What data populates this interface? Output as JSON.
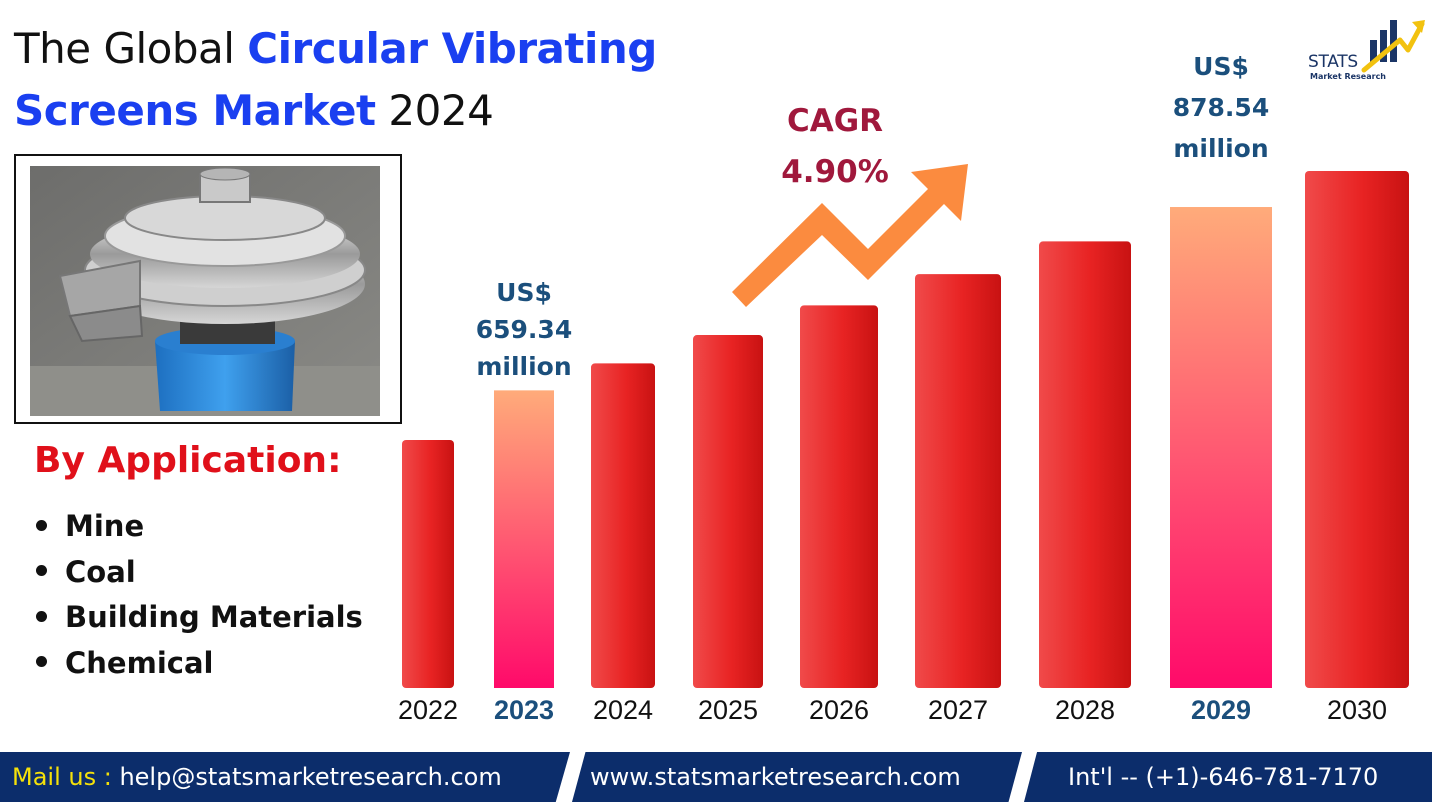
{
  "title": {
    "part1": "The Global ",
    "highlight1": "Circular Vibrating",
    "highlight2": "Screens Market",
    "part2": " 2024"
  },
  "photo": {
    "icon": "vibrating-screen-machine-photo"
  },
  "applications": {
    "heading": "By Application:",
    "items": [
      "Mine",
      "Coal",
      "Building Materials",
      "Chemical"
    ]
  },
  "annotations": {
    "value_2023": [
      "US$",
      "659.34",
      "million"
    ],
    "value_2029": [
      "US$",
      "878.54",
      "million"
    ],
    "cagr_title": "CAGR",
    "cagr_value": "4.90%"
  },
  "logo": {
    "name": "STATS",
    "subtitle": "Market Research",
    "icon": "bar-chart-arrow-icon"
  },
  "footer": {
    "mail_label": "Mail us :",
    "email": " help@statsmarketresearch.com",
    "website": "www.statsmarketresearch.com",
    "phone": "Int'l -- (+1)-646-781-7170"
  },
  "colors": {
    "title_blue": "#1a3ff0",
    "bar_red": "#e01a1a",
    "bar_highlight_top": "#ffab7a",
    "bar_highlight_bottom": "#ff0a6a",
    "arrow_orange": "#fb8b3f",
    "footer_navy": "#0c2d6b"
  },
  "chart_data": {
    "type": "bar",
    "title": "The Global Circular Vibrating Screens Market 2024",
    "xlabel": "",
    "ylabel": "",
    "categories": [
      "2022",
      "2023",
      "2024",
      "2025",
      "2026",
      "2027",
      "2028",
      "2029",
      "2030"
    ],
    "values": [
      600,
      659.34,
      691.6,
      725.5,
      761.0,
      798.3,
      837.4,
      878.54,
      921.6
    ],
    "highlighted": [
      "2023",
      "2029"
    ],
    "ylim": [
      0,
      950
    ],
    "grid": false,
    "legend": "none",
    "annotations": [
      {
        "category": "2023",
        "text": "US$ 659.34 million"
      },
      {
        "category": "2029",
        "text": "US$ 878.54 million"
      },
      {
        "text": "CAGR 4.90%"
      }
    ]
  }
}
